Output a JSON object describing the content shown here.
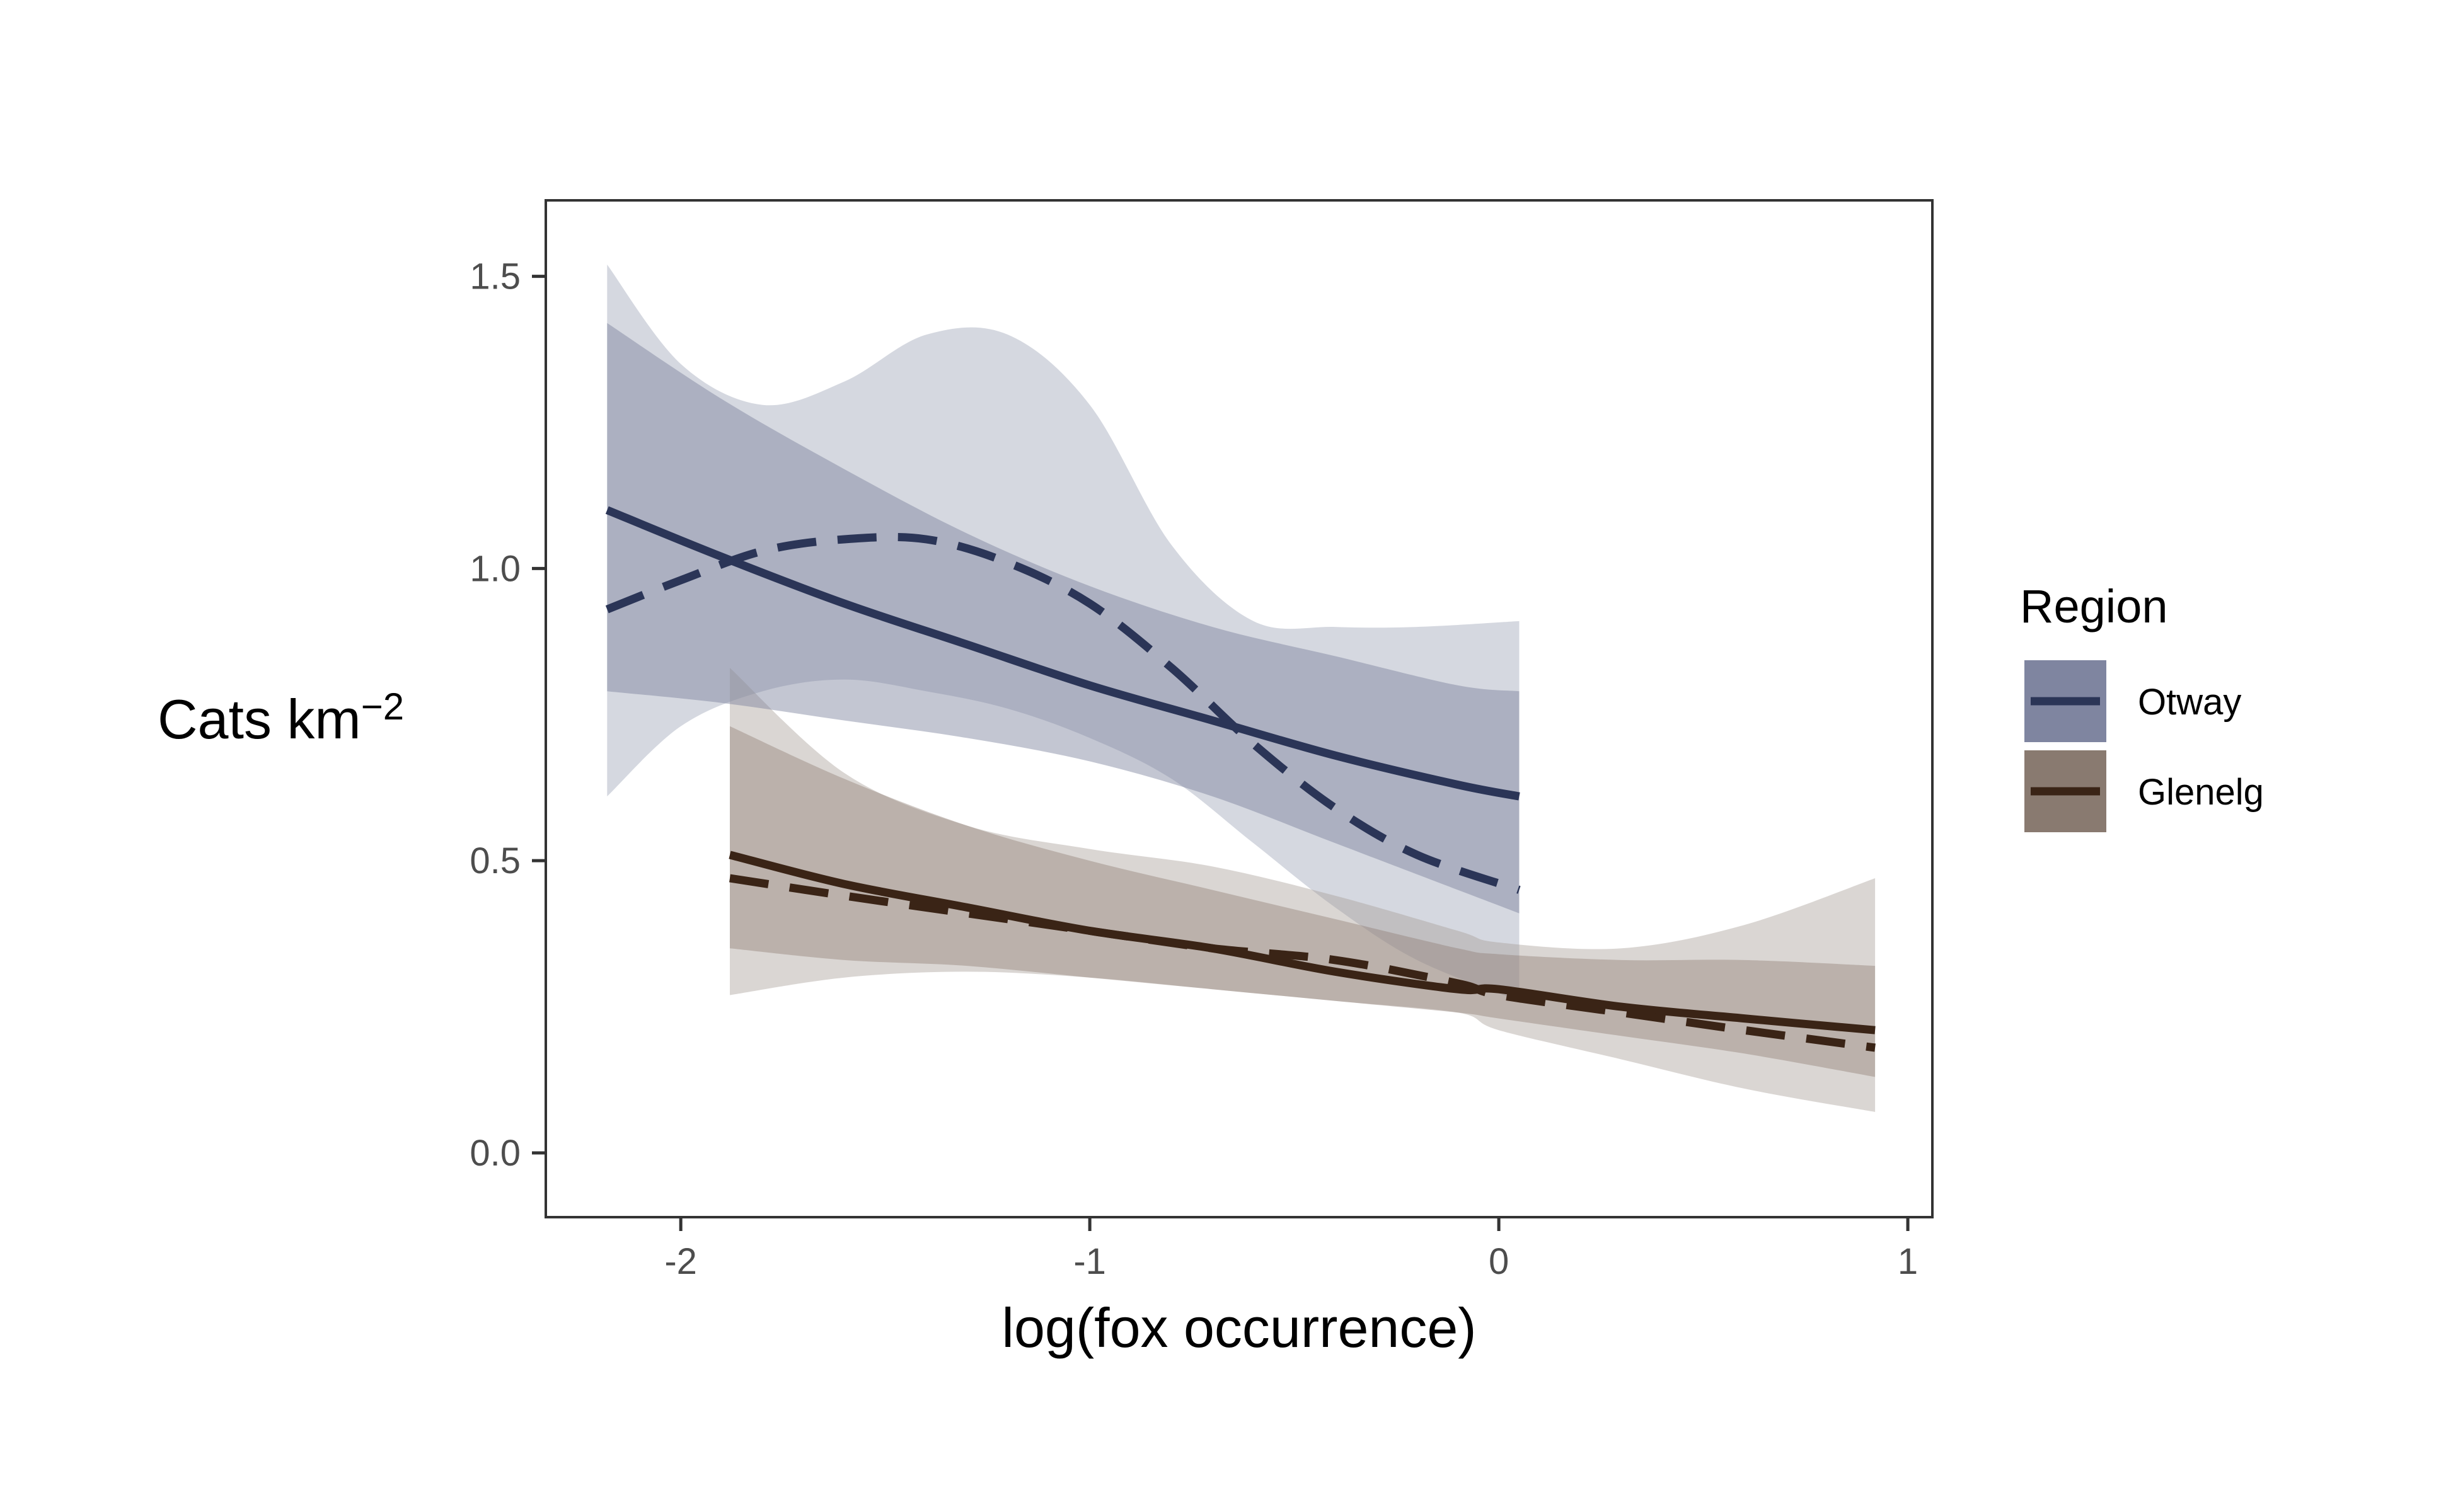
{
  "chart_data": {
    "type": "line",
    "title": "",
    "xlabel": "log(fox occurrence)",
    "ylabel_main": "Cats km",
    "ylabel_superscript": "−2",
    "xlim": [
      -2.33,
      1.06
    ],
    "ylim": [
      -0.11,
      1.63
    ],
    "x_ticks": [
      -2,
      -1,
      0,
      1
    ],
    "x_tick_labels": [
      "-2",
      "-1",
      "0",
      "1"
    ],
    "y_ticks": [
      0.0,
      0.5,
      1.0,
      1.5
    ],
    "y_tick_labels": [
      "0.0",
      "0.5",
      "1.0",
      "1.5"
    ],
    "grid": false,
    "legend": {
      "title": "Region",
      "position": "right",
      "entries": [
        {
          "label": "Otway",
          "line_color": "#2b3557",
          "fill_color": "#7f85a0"
        },
        {
          "label": "Glenelg",
          "line_color": "#3a2416",
          "fill_color": "#897a70"
        }
      ]
    },
    "series": [
      {
        "region": "Otway",
        "linetype": "solid",
        "color": "#2b3557",
        "band_color": "#7a809c",
        "band_opacity": 0.45,
        "x": [
          -2.18,
          -1.9,
          -1.6,
          -1.3,
          -1.0,
          -0.7,
          -0.4,
          -0.1,
          0.05
        ],
        "y": [
          1.1,
          1.02,
          0.94,
          0.87,
          0.8,
          0.74,
          0.68,
          0.63,
          0.61
        ],
        "lower": [
          0.79,
          0.77,
          0.74,
          0.71,
          0.67,
          0.61,
          0.53,
          0.45,
          0.41
        ],
        "upper": [
          1.42,
          1.29,
          1.17,
          1.06,
          0.97,
          0.9,
          0.85,
          0.8,
          0.79
        ]
      },
      {
        "region": "Otway",
        "linetype": "dashed",
        "color": "#2b3557",
        "band_color": "#9ca1b6",
        "band_opacity": 0.42,
        "x": [
          -2.18,
          -2.0,
          -1.8,
          -1.6,
          -1.4,
          -1.2,
          -1.0,
          -0.8,
          -0.6,
          -0.4,
          -0.2,
          0.05
        ],
        "y": [
          0.93,
          0.98,
          1.03,
          1.05,
          1.05,
          1.01,
          0.94,
          0.83,
          0.7,
          0.59,
          0.51,
          0.45
        ],
        "lower": [
          0.61,
          0.73,
          0.79,
          0.81,
          0.79,
          0.76,
          0.71,
          0.64,
          0.53,
          0.42,
          0.33,
          0.26
        ],
        "upper": [
          1.52,
          1.35,
          1.28,
          1.32,
          1.4,
          1.4,
          1.28,
          1.04,
          0.91,
          0.9,
          0.9,
          0.91
        ]
      },
      {
        "region": "Glenelg",
        "linetype": "solid",
        "color": "#3a2416",
        "band_color": "#8b7b71",
        "band_opacity": 0.4,
        "x": [
          -1.88,
          -1.6,
          -1.3,
          -1.0,
          -0.7,
          -0.4,
          -0.1,
          0.0,
          0.3,
          0.6,
          0.92
        ],
        "y": [
          0.51,
          0.46,
          0.42,
          0.38,
          0.35,
          0.31,
          0.28,
          0.28,
          0.25,
          0.23,
          0.21
        ],
        "lower": [
          0.35,
          0.33,
          0.32,
          0.3,
          0.28,
          0.26,
          0.24,
          0.23,
          0.2,
          0.17,
          0.13
        ],
        "upper": [
          0.73,
          0.64,
          0.56,
          0.5,
          0.45,
          0.4,
          0.35,
          0.34,
          0.33,
          0.33,
          0.32
        ]
      },
      {
        "region": "Glenelg",
        "linetype": "dashed",
        "color": "#3a2416",
        "band_color": "#a89d96",
        "band_opacity": 0.42,
        "x": [
          -1.88,
          -1.6,
          -1.3,
          -1.0,
          -0.7,
          -0.4,
          -0.1,
          0.0,
          0.3,
          0.6,
          0.92
        ],
        "y": [
          0.47,
          0.44,
          0.41,
          0.38,
          0.35,
          0.33,
          0.29,
          0.27,
          0.24,
          0.21,
          0.18
        ],
        "lower": [
          0.27,
          0.3,
          0.31,
          0.3,
          0.28,
          0.26,
          0.24,
          0.21,
          0.16,
          0.11,
          0.07
        ],
        "upper": [
          0.83,
          0.65,
          0.56,
          0.52,
          0.49,
          0.44,
          0.38,
          0.36,
          0.35,
          0.39,
          0.47
        ]
      }
    ]
  }
}
